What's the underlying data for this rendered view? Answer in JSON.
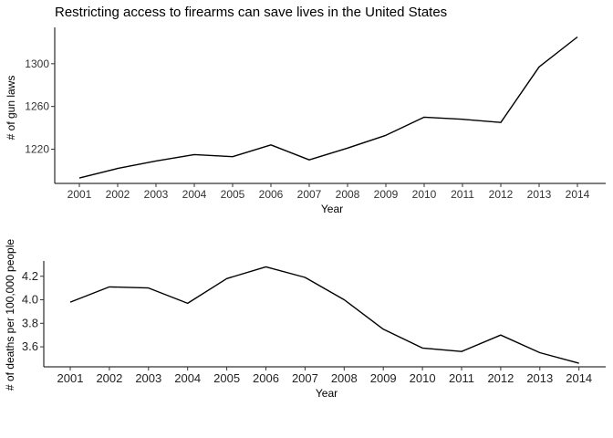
{
  "figure_title": "Restricting access to firearms can save lives in the United States",
  "chart_data": [
    {
      "type": "line",
      "title": "Restricting access to firearms can save lives in the United States",
      "xlabel": "Year",
      "ylabel": "# of gun laws",
      "x": [
        2001,
        2002,
        2003,
        2004,
        2005,
        2006,
        2007,
        2008,
        2009,
        2010,
        2011,
        2012,
        2013,
        2014
      ],
      "x_tick_labels": [
        "2001",
        "2002",
        "2003",
        "2004",
        "2005",
        "2006",
        "2007",
        "2008",
        "2009",
        "2010",
        "2011",
        "2012",
        "2013",
        "2014"
      ],
      "y_ticks": [
        1220,
        1260,
        1300
      ],
      "y_tick_labels": [
        "1220",
        "1260",
        "1300"
      ],
      "ylim": [
        1188,
        1334
      ],
      "series": [
        {
          "values": [
            1193,
            1202,
            1209,
            1215,
            1213,
            1224,
            1210,
            1221,
            1233,
            1250,
            1248,
            1245,
            1297,
            1325
          ]
        }
      ],
      "grid": false
    },
    {
      "type": "line",
      "title": "",
      "xlabel": "Year",
      "ylabel": "# of deaths per 100,000 people",
      "x": [
        2001,
        2002,
        2003,
        2004,
        2005,
        2006,
        2007,
        2008,
        2009,
        2010,
        2011,
        2012,
        2013,
        2014
      ],
      "x_tick_labels": [
        "2001",
        "2002",
        "2003",
        "2004",
        "2005",
        "2006",
        "2007",
        "2008",
        "2009",
        "2010",
        "2011",
        "2012",
        "2013",
        "2014"
      ],
      "y_ticks": [
        3.6,
        3.8,
        4.0,
        4.2
      ],
      "y_tick_labels": [
        "3.6",
        "3.8",
        "4.0",
        "4.2"
      ],
      "ylim": [
        3.43,
        4.33
      ],
      "series": [
        {
          "values": [
            3.98,
            4.11,
            4.1,
            3.97,
            4.18,
            4.28,
            4.19,
            4.0,
            3.75,
            3.59,
            3.56,
            3.7,
            3.55,
            3.46
          ]
        }
      ],
      "grid": false
    }
  ]
}
